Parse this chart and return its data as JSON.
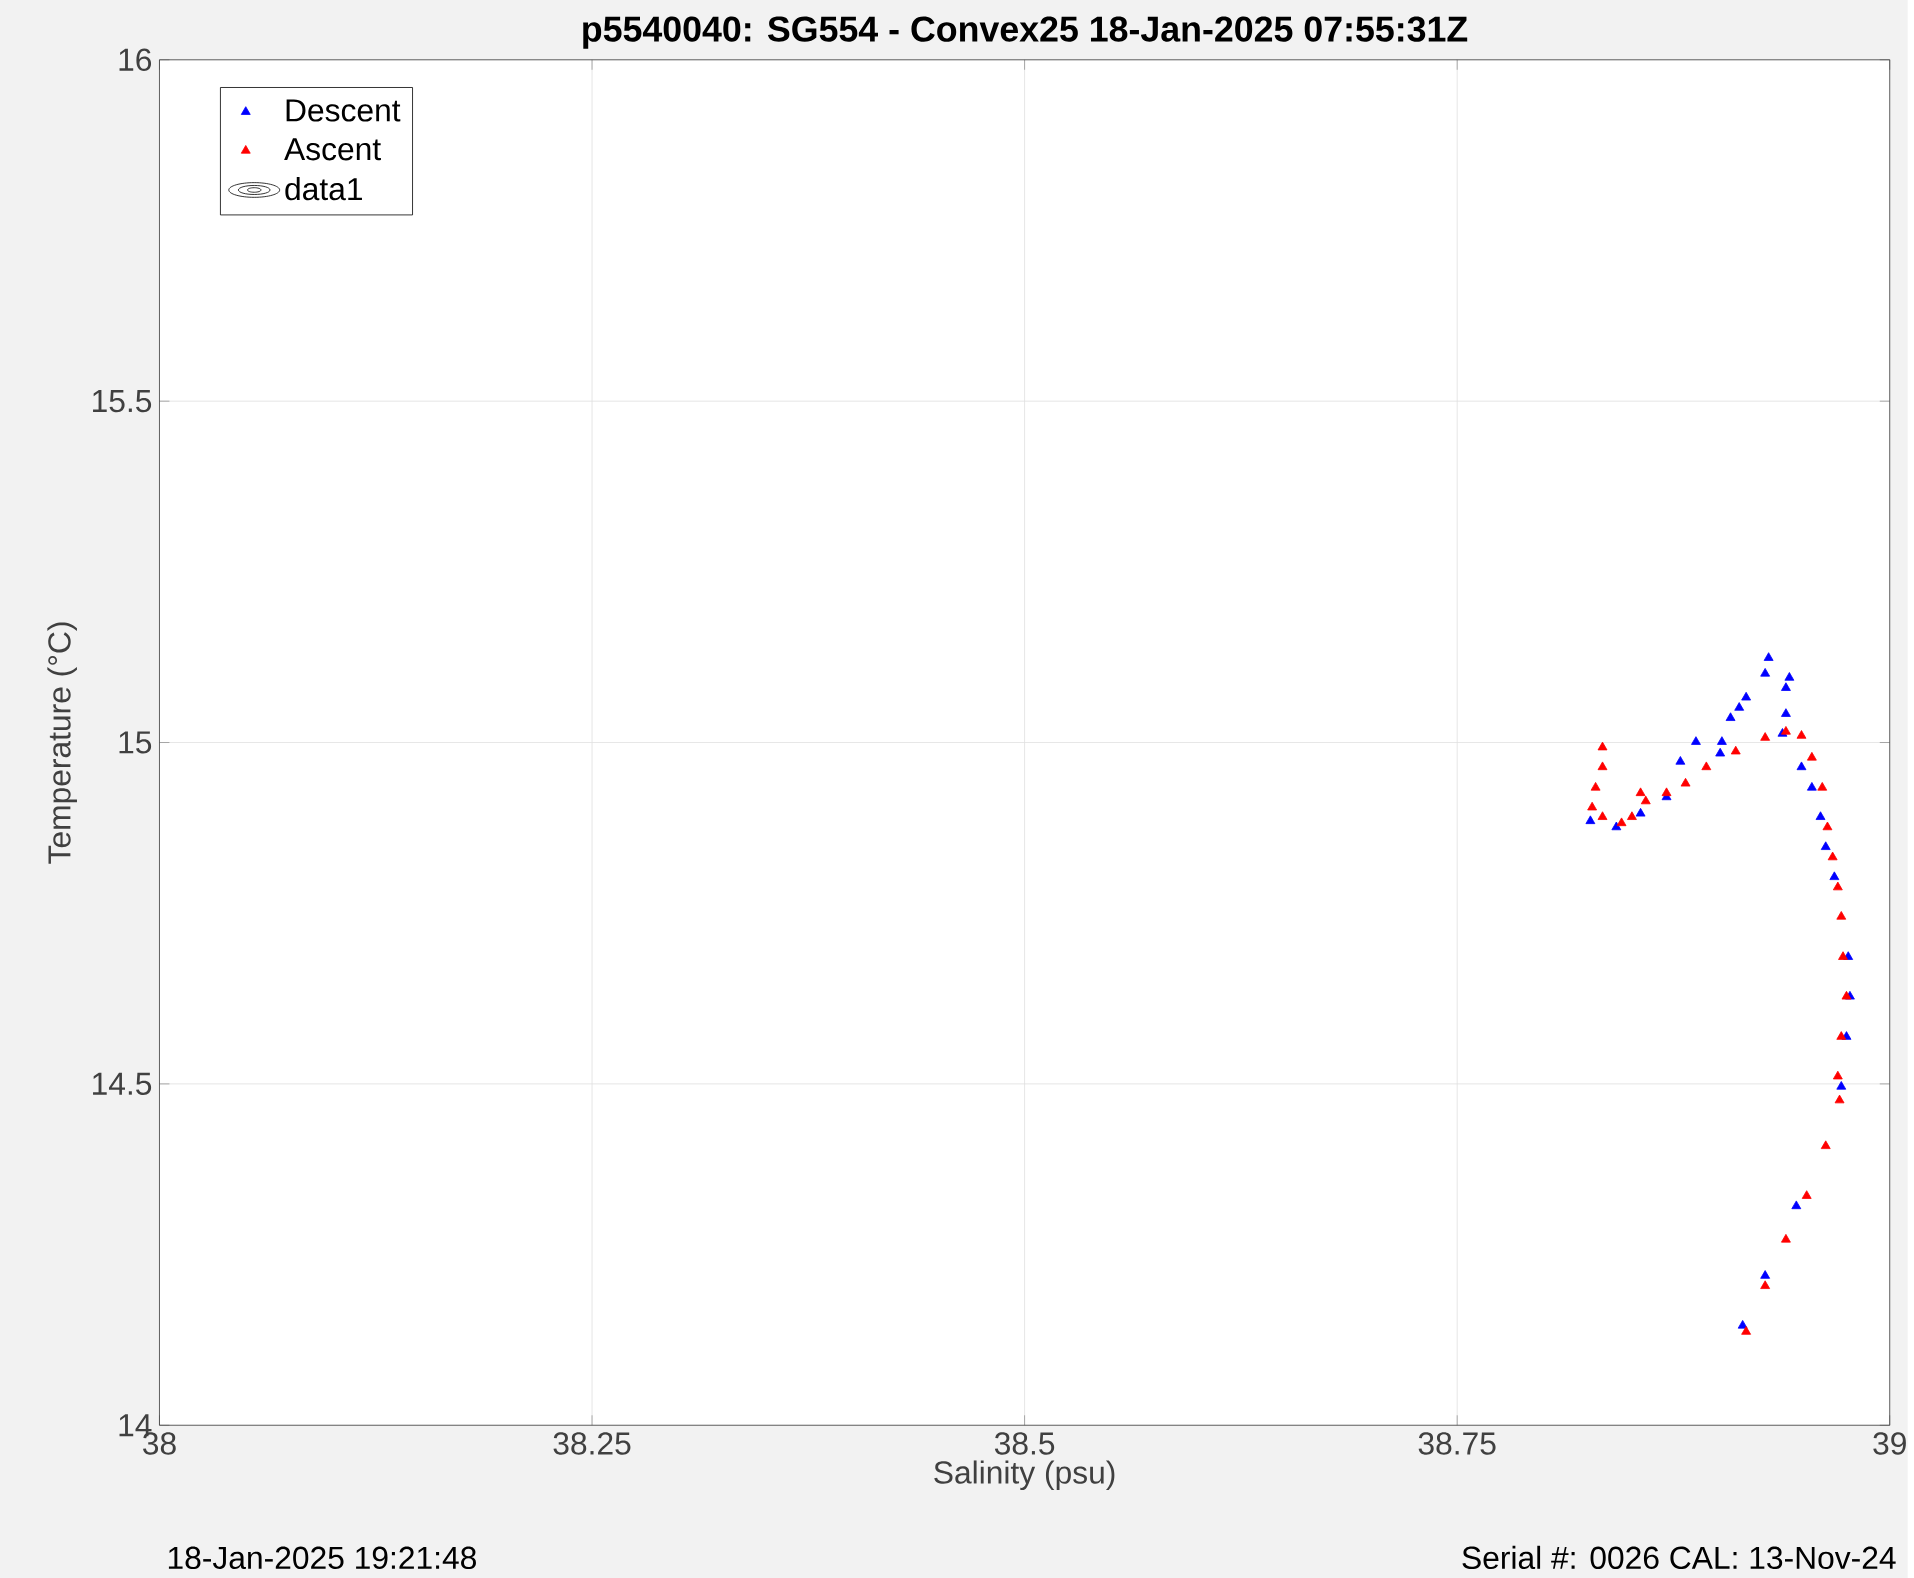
{
  "chart_data": {
    "type": "scatter",
    "title": "p5540040: SG554 - Convex25 18-Jan-2025 07:55:31Z",
    "xlabel": "Salinity (psu)",
    "ylabel": "Temperature (°C)",
    "xlim": [
      38,
      39
    ],
    "ylim": [
      14,
      16
    ],
    "xticks": [
      38,
      38.25,
      38.5,
      38.75,
      39
    ],
    "yticks": [
      14,
      14.5,
      15,
      15.5,
      16
    ],
    "grid": true,
    "legend": "top left",
    "annotations": [
      "18-Jan-2025 19:21:48",
      "Serial #: 0026 CAL: 13-Nov-24"
    ],
    "series": [
      {
        "name": "Descent",
        "color": "#0000ff",
        "marker": "triangle",
        "x": [
          38.915,
          38.928,
          38.946,
          38.963,
          38.972,
          38.975,
          38.977,
          38.976,
          38.971,
          38.968,
          38.963,
          38.96,
          38.955,
          38.949,
          38.938,
          38.94,
          38.942,
          38.94,
          38.93,
          38.928,
          38.917,
          38.913,
          38.908,
          38.903,
          38.902,
          38.888,
          38.879,
          38.871,
          38.856,
          38.842,
          38.827
        ],
        "values": [
          14.146,
          14.219,
          14.321,
          null,
          14.496,
          14.569,
          14.628,
          14.686,
          null,
          14.803,
          14.847,
          14.891,
          14.934,
          14.964,
          15.013,
          15.042,
          15.095,
          15.08,
          15.124,
          15.101,
          15.066,
          15.051,
          15.036,
          15.001,
          14.984,
          15.001,
          14.972,
          14.92,
          14.896,
          14.876,
          14.885
        ]
      },
      {
        "name": "Ascent",
        "color": "#ff0000",
        "marker": "triangle",
        "x": [
          38.917,
          38.928,
          38.94,
          38.952,
          38.963,
          38.971,
          38.97,
          38.972,
          38.975,
          38.973,
          38.972,
          38.97,
          38.967,
          38.964,
          38.961,
          38.955,
          38.949,
          38.94,
          38.928,
          38.911,
          38.894,
          38.882,
          38.871,
          38.859,
          38.856,
          38.851,
          38.845,
          38.834,
          38.828,
          38.83,
          38.834,
          38.834
        ],
        "values": [
          14.137,
          14.204,
          14.272,
          14.336,
          14.409,
          14.476,
          14.511,
          14.569,
          14.628,
          14.686,
          14.745,
          14.788,
          14.832,
          14.876,
          14.934,
          14.978,
          15.01,
          15.016,
          15.007,
          14.987,
          14.964,
          14.94,
          14.926,
          14.914,
          14.926,
          14.891,
          14.882,
          14.891,
          14.905,
          14.934,
          14.964,
          14.993
        ]
      },
      {
        "name": "data1",
        "type": "other",
        "color": "#000000"
      }
    ]
  }
}
